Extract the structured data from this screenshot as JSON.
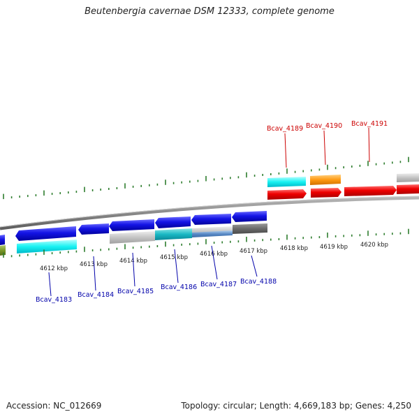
{
  "header": {
    "title": "Beutenbergia cavernae DSM 12333, complete genome"
  },
  "footer": {
    "accession": "Accession: NC_012669",
    "topology": "Topology: circular; Length: 4,669,183 bp; Genes: 4,250"
  },
  "colors": {
    "backbone": "#8a8a8a",
    "tick": "#2e7d2e",
    "label_forward": "#cc0000",
    "label_reverse": "#0000aa"
  },
  "kbp_labels": [
    "4612 kbp",
    "4613 kbp",
    "4614 kbp",
    "4615 kbp",
    "4616 kbp",
    "4617 kbp",
    "4618 kbp",
    "4619 kbp",
    "4620 kbp"
  ],
  "genes_top": [
    {
      "name": "Bcav_4189",
      "color": "#cc0000"
    },
    {
      "name": "Bcav_4190",
      "color": "#cc0000"
    },
    {
      "name": "Bcav_4191",
      "color": "#cc0000"
    }
  ],
  "genes_bottom": [
    {
      "name": "Bcav_4183",
      "color": "#0000aa"
    },
    {
      "name": "Bcav_4184",
      "color": "#0000aa"
    },
    {
      "name": "Bcav_4185",
      "color": "#0000aa"
    },
    {
      "name": "Bcav_4186",
      "color": "#0000aa"
    },
    {
      "name": "Bcav_4187",
      "color": "#0000aa"
    },
    {
      "name": "Bcav_4188",
      "color": "#0000aa"
    }
  ]
}
